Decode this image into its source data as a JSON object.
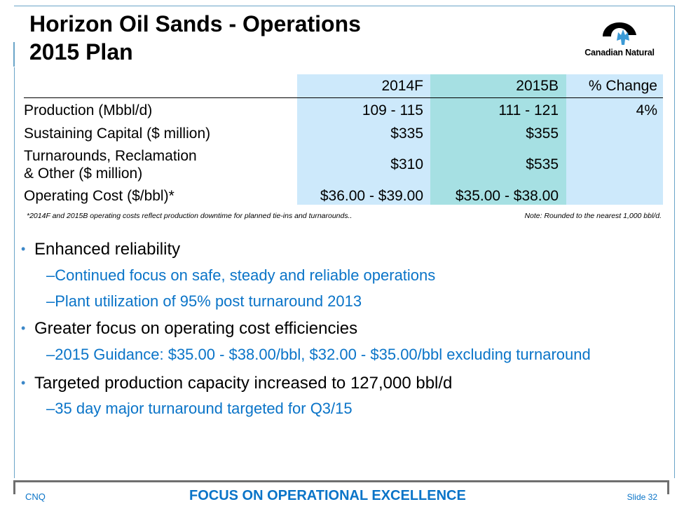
{
  "title": {
    "line1": "Horizon Oil Sands - Operations",
    "line2": "2015 Plan"
  },
  "logo": {
    "text": "Canadian Natural",
    "icon": "maple-leaf-logo-icon",
    "colors": {
      "black": "#000000",
      "accent": "#3b9ad6"
    }
  },
  "table": {
    "columns": [
      "2014F",
      "2015B",
      "% Change"
    ],
    "rows": [
      {
        "label": "Production (Mbbl/d)",
        "v2014f": "109 - 115",
        "v2015b": "111 - 121",
        "change": "4%"
      },
      {
        "label": "Sustaining Capital ($ million)",
        "v2014f": "$335",
        "v2015b": "$355",
        "change": ""
      },
      {
        "label_line1": "Turnarounds, Reclamation",
        "label_line2": "& Other ($ million)",
        "v2014f": "$310",
        "v2015b": "$535",
        "change": ""
      },
      {
        "label": "Operating Cost ($/bbl)*",
        "v2014f": "$36.00 - $39.00",
        "v2015b": "$35.00 - $38.00",
        "change": ""
      }
    ],
    "colors": {
      "col_light": "#cde9fb",
      "col_teal": "#a6e0e3"
    }
  },
  "notes": {
    "left": "*2014F and 2015B operating costs reflect production downtime  for planned tie-ins and turnarounds..",
    "right": "Note: Rounded to the nearest 1,000 bbl/d."
  },
  "bullets": [
    {
      "text": "Enhanced reliability",
      "subs": [
        "Continued focus on safe, steady and reliable operations",
        "Plant utilization of 95% post turnaround 2013"
      ]
    },
    {
      "text": "Greater focus on operating cost efficiencies",
      "subs": [
        "2015 Guidance: $35.00 - $38.00/bbl, $32.00 - $35.00/bbl excluding turnaround"
      ]
    },
    {
      "text": "Targeted production capacity increased to 127,000 bbl/d",
      "subs": [
        "35 day major turnaround targeted for Q3/15"
      ]
    }
  ],
  "bullet_marker": "•",
  "sub_marker": "–",
  "footer": {
    "left": "CNQ",
    "center": "FOCUS ON OPERATIONAL EXCELLENCE",
    "right": "Slide 32",
    "color": "#0a74c8"
  }
}
